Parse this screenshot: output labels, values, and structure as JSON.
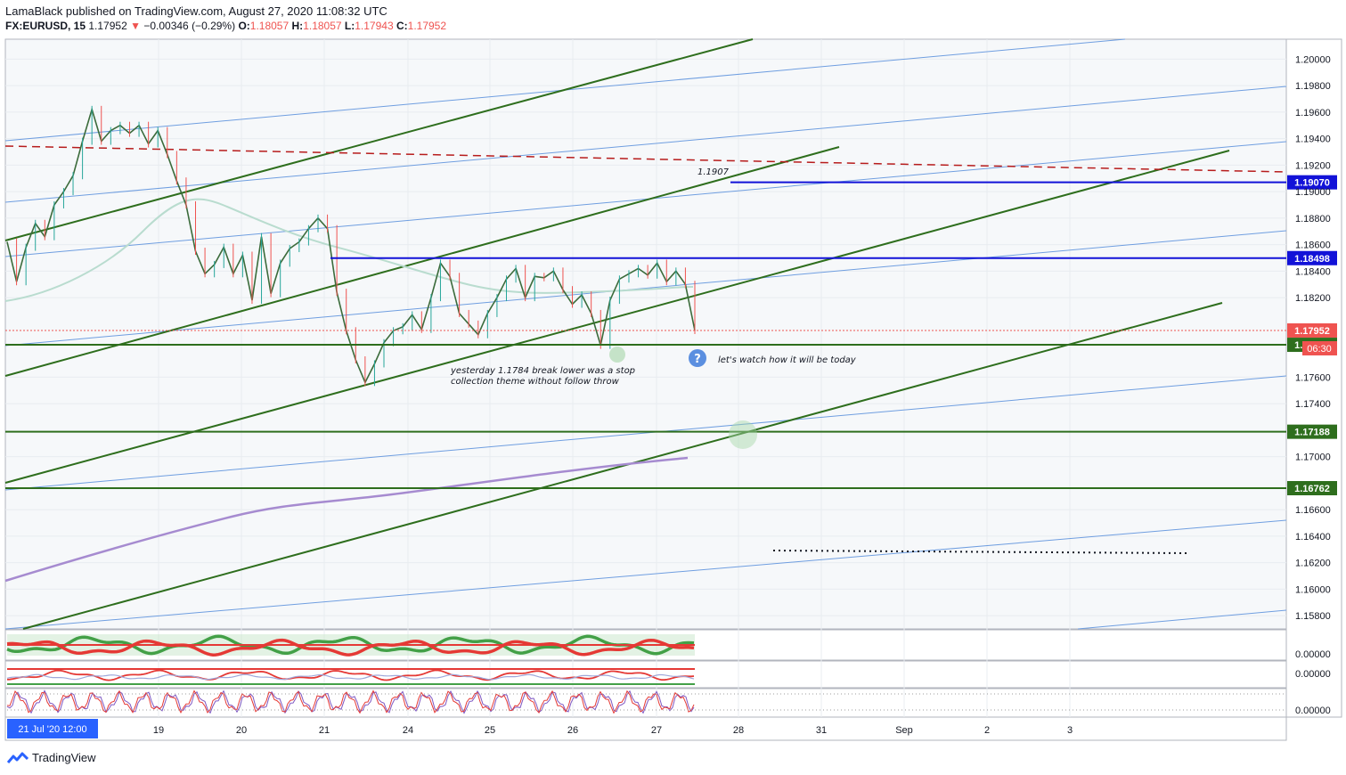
{
  "header": {
    "line1": "LamaBlack published on TradingView.com, August 27, 2020 11:08:32 UTC",
    "symbol": "FX:EURUSD, 15",
    "last": "1.17952",
    "down_arrow": "▼",
    "change": "−0.00346 (−0.29%)",
    "o_label": "O:",
    "o_value": "1.18057",
    "h_label": "H:",
    "h_value": "1.18057",
    "l_label": "L:",
    "l_value": "1.17943",
    "c_label": "C:",
    "c_value": "1.17952"
  },
  "footer": {
    "logo_text": "TradingView",
    "logo_icon": "tradingview-logo-icon"
  },
  "chart_data": {
    "type": "line",
    "title": "",
    "xlabel": "",
    "ylabel": "",
    "ylim": [
      1.157,
      1.2015
    ],
    "grid": true,
    "x_ticks": [
      "19",
      "20",
      "21",
      "24",
      "25",
      "26",
      "27",
      "28",
      "31",
      "Sep",
      "2",
      "3"
    ],
    "cursor_label": "21 Jul '20  12:00",
    "y_ticks": [
      "1.20000",
      "1.19800",
      "1.19600",
      "1.19400",
      "1.19200",
      "1.19000",
      "1.18800",
      "1.18600",
      "1.18400",
      "1.18200",
      "1.17600",
      "1.17400",
      "1.17000",
      "1.16600",
      "1.16400",
      "1.16200",
      "1.16000",
      "1.15800"
    ],
    "price_path": [
      1.1862,
      1.1832,
      1.1858,
      1.1876,
      1.1866,
      1.189,
      1.19,
      1.1912,
      1.1938,
      1.1962,
      1.1938,
      1.1946,
      1.195,
      1.1944,
      1.195,
      1.1936,
      1.1946,
      1.1928,
      1.1908,
      1.189,
      1.1855,
      1.1838,
      1.1845,
      1.1858,
      1.1838,
      1.1852,
      1.1818,
      1.1866,
      1.1823,
      1.1846,
      1.1857,
      1.1862,
      1.1872,
      1.188,
      1.1872,
      1.1824,
      1.1795,
      1.1773,
      1.1756,
      1.177,
      1.1786,
      1.1795,
      1.1798,
      1.1807,
      1.1796,
      1.182,
      1.1846,
      1.1836,
      1.1808,
      1.18,
      1.1792,
      1.1808,
      1.182,
      1.1834,
      1.1842,
      1.182,
      1.1836,
      1.1835,
      1.184,
      1.1826,
      1.1815,
      1.1822,
      1.1808,
      1.1784,
      1.1818,
      1.1834,
      1.1838,
      1.1842,
      1.1837,
      1.1846,
      1.1832,
      1.184,
      1.183,
      1.17952
    ],
    "horizontal_levels": [
      {
        "value": 1.1907,
        "label": "1.19070",
        "color": "#1212d8"
      },
      {
        "value": 1.18498,
        "label": "1.18498",
        "color": "#1212d8"
      },
      {
        "value": 1.17844,
        "label": "1.17844",
        "color": "#2e6e1d"
      },
      {
        "value": 1.17188,
        "label": "1.17188",
        "color": "#2e6e1d"
      },
      {
        "value": 1.16762,
        "label": "1.16762",
        "color": "#2e6e1d"
      }
    ],
    "current_price": {
      "value": 1.17952,
      "label": "1.17952",
      "countdown": "06:30",
      "color": "#ef5350"
    },
    "annotations": [
      {
        "text": "1.1907"
      },
      {
        "text": "yesterday 1.1784 break lower was a stop"
      },
      {
        "text": "collection theme without follow throw"
      },
      {
        "text": "let's watch how it will be today"
      }
    ],
    "oscillator_ticks": [
      "0.00000",
      "0.00000",
      "0.00000"
    ],
    "colors": {
      "green_line": "#2e6e1d",
      "blue_line": "#6f9ee0",
      "red_dashed": "#b71c1c",
      "purple_ma": "#a68bd0",
      "teal_ma": "#b9dccf",
      "candle_up": "#26a69a",
      "candle_down": "#ef5350"
    }
  }
}
